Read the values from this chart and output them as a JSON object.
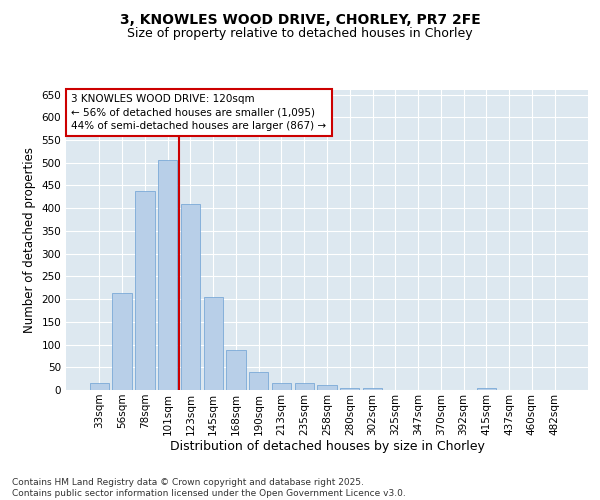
{
  "title_line1": "3, KNOWLES WOOD DRIVE, CHORLEY, PR7 2FE",
  "title_line2": "Size of property relative to detached houses in Chorley",
  "xlabel": "Distribution of detached houses by size in Chorley",
  "ylabel": "Number of detached properties",
  "categories": [
    "33sqm",
    "56sqm",
    "78sqm",
    "101sqm",
    "123sqm",
    "145sqm",
    "168sqm",
    "190sqm",
    "213sqm",
    "235sqm",
    "258sqm",
    "280sqm",
    "302sqm",
    "325sqm",
    "347sqm",
    "370sqm",
    "392sqm",
    "415sqm",
    "437sqm",
    "460sqm",
    "482sqm"
  ],
  "values": [
    15,
    213,
    438,
    507,
    410,
    205,
    87,
    39,
    15,
    15,
    12,
    5,
    4,
    1,
    0,
    0,
    0,
    4,
    0,
    0,
    0
  ],
  "bar_color": "#b8cfe8",
  "bar_edgecolor": "#6a9fd4",
  "vline_color": "#cc0000",
  "vline_x_index": 3.5,
  "annotation_text": "3 KNOWLES WOOD DRIVE: 120sqm\n← 56% of detached houses are smaller (1,095)\n44% of semi-detached houses are larger (867) →",
  "annotation_box_facecolor": "#ffffff",
  "annotation_box_edgecolor": "#cc0000",
  "ylim": [
    0,
    660
  ],
  "yticks": [
    0,
    50,
    100,
    150,
    200,
    250,
    300,
    350,
    400,
    450,
    500,
    550,
    600,
    650
  ],
  "plot_bg_color": "#dde8f0",
  "fig_bg_color": "#ffffff",
  "footer_text": "Contains HM Land Registry data © Crown copyright and database right 2025.\nContains public sector information licensed under the Open Government Licence v3.0.",
  "title_fontsize": 10,
  "subtitle_fontsize": 9,
  "axis_label_fontsize": 8.5,
  "tick_fontsize": 7.5,
  "annotation_fontsize": 7.5,
  "footer_fontsize": 6.5,
  "ylabel_text": "Number of detached properties"
}
